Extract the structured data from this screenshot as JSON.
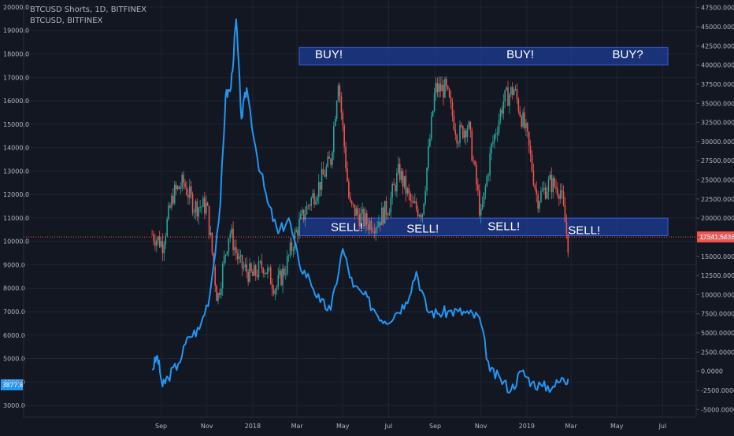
{
  "legend": {
    "line1": "BTCUSD Shorts, 1D, BITFINEX",
    "line2": "BTCUSD, BITFINEX"
  },
  "colors": {
    "background": "#131722",
    "grid": "#1f2433",
    "text": "#b2b5be",
    "shorts_line": "#2196f3",
    "candle_up": "#26a69a",
    "candle_down": "#ef5350",
    "zone_fill": "#1e3c96",
    "zone_border": "#3f5bd6",
    "current_price": "#ef5350",
    "left_tag": "#2196f3"
  },
  "chart_data": {
    "type": "line",
    "x_labels": [
      "Sep",
      "Nov",
      "2018",
      "Mar",
      "May",
      "Jul",
      "Sep",
      "Nov",
      "2019",
      "Mar",
      "May",
      "Jul"
    ],
    "y_left": {
      "ticks": [
        "3000.0",
        "4000.0",
        "5000.0",
        "6000.0",
        "7000.0",
        "8000.0",
        "9000.0",
        "10000.0",
        "11000.0",
        "12000.0",
        "13000.0",
        "14000.0",
        "15000.0",
        "16000.0",
        "17000.0",
        "18000.0",
        "19000.0",
        "20000.0"
      ],
      "range": [
        2500,
        20300
      ]
    },
    "y_right": {
      "ticks": [
        "47500.0000",
        "45000.0000",
        "42500.0000",
        "40000.0000",
        "37500.0000",
        "35000.0000",
        "32500.0000",
        "30000.0000",
        "27500.0000",
        "25000.0000",
        "22500.0000",
        "20000.0000",
        "17500.0000",
        "15000.0000",
        "12500.0000",
        "10000.0000",
        "7500.0000",
        "5000.0000",
        "2500.0000",
        "0.0000",
        "-2500.0000",
        "-5000.0000"
      ],
      "range": [
        -6000,
        48500
      ]
    },
    "current_value_label": "17541.5436",
    "left_value_label": "3877.8",
    "annotations": [
      {
        "text": "BUY!",
        "pos": "top-left"
      },
      {
        "text": "BUY!",
        "pos": "top-middle"
      },
      {
        "text": "BUY?",
        "pos": "top-right"
      },
      {
        "text": "SELL!",
        "pos": "bottom-1"
      },
      {
        "text": "SELL!",
        "pos": "bottom-2"
      },
      {
        "text": "SELL!",
        "pos": "bottom-3"
      },
      {
        "text": "SELL!",
        "pos": "bottom-4"
      }
    ],
    "buy_zone": [
      40000,
      42300
    ],
    "sell_zone": [
      17700,
      20000
    ],
    "series": [
      {
        "name": "BTCUSD Shorts",
        "style": "line",
        "axis": "right",
        "points": [
          [
            "2017-08-20",
            200
          ],
          [
            "2017-08-27",
            2000
          ],
          [
            "2017-09-03",
            -2000
          ],
          [
            "2017-09-10",
            -800
          ],
          [
            "2017-09-24",
            1000
          ],
          [
            "2017-10-08",
            4500
          ],
          [
            "2017-10-22",
            5500
          ],
          [
            "2017-11-05",
            10000
          ],
          [
            "2017-11-19",
            22000
          ],
          [
            "2017-11-26",
            36000
          ],
          [
            "2017-12-03",
            37000
          ],
          [
            "2017-12-10",
            46000
          ],
          [
            "2017-12-17",
            33000
          ],
          [
            "2017-12-24",
            37000
          ],
          [
            "2018-01-07",
            28000
          ],
          [
            "2018-01-21",
            22000
          ],
          [
            "2018-02-04",
            18000
          ],
          [
            "2018-02-18",
            20000
          ],
          [
            "2018-03-04",
            14000
          ],
          [
            "2018-03-18",
            12000
          ],
          [
            "2018-04-01",
            9000
          ],
          [
            "2018-04-15",
            8000
          ],
          [
            "2018-05-01",
            16000
          ],
          [
            "2018-05-15",
            11000
          ],
          [
            "2018-05-29",
            10000
          ],
          [
            "2018-06-12",
            8000
          ],
          [
            "2018-06-26",
            6500
          ],
          [
            "2018-07-10",
            7500
          ],
          [
            "2018-07-24",
            9000
          ],
          [
            "2018-08-07",
            13000
          ],
          [
            "2018-08-21",
            8000
          ],
          [
            "2018-09-04",
            7500
          ],
          [
            "2018-09-18",
            7800
          ],
          [
            "2018-10-02",
            7800
          ],
          [
            "2018-10-16",
            7500
          ],
          [
            "2018-10-30",
            7000
          ],
          [
            "2018-11-13",
            0
          ],
          [
            "2018-11-27",
            -1000
          ],
          [
            "2018-12-11",
            -2500
          ],
          [
            "2018-12-25",
            0
          ],
          [
            "2019-01-08",
            -1500
          ],
          [
            "2019-01-22",
            -2000
          ],
          [
            "2019-02-05",
            -2000
          ],
          [
            "2019-02-19",
            -1000
          ],
          [
            "2019-02-25",
            -1000
          ]
        ]
      },
      {
        "name": "BTCUSD",
        "style": "candles",
        "axis": "left",
        "points": [
          [
            "2017-08-20",
            10300
          ],
          [
            "2017-09-03",
            9900
          ],
          [
            "2017-09-17",
            12000
          ],
          [
            "2017-10-01",
            12500
          ],
          [
            "2017-10-15",
            11500
          ],
          [
            "2017-11-01",
            11500
          ],
          [
            "2017-11-15",
            7500
          ],
          [
            "2017-12-01",
            10500
          ],
          [
            "2017-12-15",
            9000
          ],
          [
            "2018-01-01",
            8500
          ],
          [
            "2018-01-15",
            9000
          ],
          [
            "2018-02-01",
            8000
          ],
          [
            "2018-02-15",
            9000
          ],
          [
            "2018-03-01",
            10500
          ],
          [
            "2018-03-15",
            11500
          ],
          [
            "2018-04-01",
            12500
          ],
          [
            "2018-04-15",
            13500
          ],
          [
            "2018-04-25",
            17000
          ],
          [
            "2018-05-10",
            11500
          ],
          [
            "2018-06-01",
            10800
          ],
          [
            "2018-06-15",
            10800
          ],
          [
            "2018-07-01",
            11500
          ],
          [
            "2018-07-15",
            13000
          ],
          [
            "2018-08-01",
            11500
          ],
          [
            "2018-08-15",
            11300
          ],
          [
            "2018-09-01",
            16500
          ],
          [
            "2018-09-15",
            16500
          ],
          [
            "2018-10-01",
            14500
          ],
          [
            "2018-10-15",
            15000
          ],
          [
            "2018-11-01",
            11000
          ],
          [
            "2018-11-15",
            14000
          ],
          [
            "2018-12-01",
            16000
          ],
          [
            "2018-12-15",
            16500
          ],
          [
            "2019-01-01",
            14500
          ],
          [
            "2019-01-15",
            11800
          ],
          [
            "2019-02-01",
            12500
          ],
          [
            "2019-02-15",
            12200
          ],
          [
            "2019-02-25",
            9900
          ]
        ]
      }
    ]
  }
}
